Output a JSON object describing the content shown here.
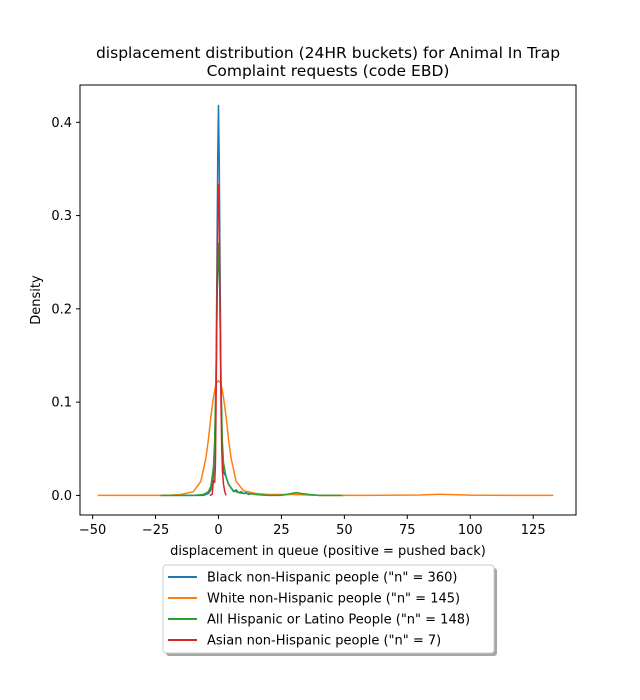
{
  "chart_data": {
    "type": "line",
    "title_line1": "displacement distribution (24HR buckets) for Animal In Trap",
    "title_line2": "Complaint requests (code EBD)",
    "xlabel": "displacement in queue (positive = pushed back)",
    "ylabel": "Density",
    "xlim": [
      -55,
      142
    ],
    "ylim": [
      -0.021,
      0.44
    ],
    "xticks": [
      -50,
      -25,
      0,
      25,
      50,
      75,
      100,
      125
    ],
    "yticks": [
      0.0,
      0.1,
      0.2,
      0.3,
      0.4
    ],
    "xtick_labels": [
      "−50",
      "−25",
      "0",
      "25",
      "50",
      "75",
      "100",
      "125"
    ],
    "ytick_labels": [
      "0.0",
      "0.1",
      "0.2",
      "0.3",
      "0.4"
    ],
    "legend_position": "below-center",
    "series": [
      {
        "name": "Black non-Hispanic people (\"n\" = 360)",
        "color": "#1f77b4",
        "x": [
          -23,
          -10,
          -6,
          -4,
          -3,
          -2,
          -1.5,
          -1,
          -0.6,
          -0.3,
          0,
          0.3,
          0.6,
          1,
          1.5,
          2,
          3,
          4,
          5,
          6,
          7,
          8,
          9,
          10,
          11,
          12,
          13,
          15,
          20,
          28,
          31,
          34,
          40,
          50
        ],
        "y": [
          0,
          0,
          0,
          0.002,
          0.006,
          0.02,
          0.05,
          0.12,
          0.25,
          0.36,
          0.418,
          0.36,
          0.25,
          0.12,
          0.05,
          0.025,
          0.02,
          0.012,
          0.008,
          0.004,
          0.006,
          0.003,
          0.004,
          0.002,
          0.003,
          0.001,
          0.002,
          0.001,
          0,
          0.001,
          0.003,
          0.001,
          0,
          0
        ]
      },
      {
        "name": "White non-Hispanic people (\"n\" = 145)",
        "color": "#ff7f0e",
        "x": [
          -48,
          -30,
          -20,
          -15,
          -10,
          -7,
          -5,
          -4,
          -3,
          -2,
          -1,
          0,
          1,
          2,
          3,
          4,
          5,
          7,
          10,
          15,
          20,
          30,
          40,
          60,
          80,
          85,
          88,
          91,
          100,
          120,
          133
        ],
        "y": [
          0,
          0,
          0,
          0.001,
          0.004,
          0.015,
          0.04,
          0.06,
          0.085,
          0.105,
          0.12,
          0.123,
          0.12,
          0.105,
          0.085,
          0.06,
          0.04,
          0.015,
          0.005,
          0.002,
          0.001,
          0.001,
          0,
          0,
          0.0005,
          0.001,
          0.0012,
          0.001,
          0.0003,
          0,
          0
        ]
      },
      {
        "name": "All Hispanic or Latino People (\"n\" = 148)",
        "color": "#2ca02c",
        "x": [
          -23,
          -10,
          -6,
          -4,
          -3,
          -2,
          -1.5,
          -1,
          -0.5,
          0,
          0.5,
          1,
          1.5,
          2,
          3,
          4,
          5,
          6,
          8,
          10,
          12,
          15,
          20,
          25,
          29,
          31,
          33,
          36,
          40,
          49
        ],
        "y": [
          0,
          0,
          0.001,
          0.004,
          0.01,
          0.03,
          0.06,
          0.12,
          0.22,
          0.27,
          0.22,
          0.12,
          0.06,
          0.035,
          0.02,
          0.012,
          0.008,
          0.005,
          0.003,
          0.002,
          0.002,
          0.001,
          0,
          0,
          0.002,
          0.003,
          0.002,
          0.001,
          0,
          0
        ]
      },
      {
        "name": "Asian non-Hispanic people (\"n\" = 7)",
        "color": "#d62728",
        "x": [
          -3.5,
          -2.5,
          -2,
          -1.5,
          -1.2,
          -1,
          -0.6,
          -0.3,
          0,
          0.3,
          0.6,
          1,
          1.3,
          1.6,
          2,
          2.5,
          3
        ],
        "y": [
          0,
          0.001,
          0.016,
          0.014,
          0.035,
          0.09,
          0.2,
          0.3,
          0.333,
          0.3,
          0.2,
          0.1,
          0.05,
          0.025,
          0.012,
          0.004,
          0
        ]
      }
    ]
  }
}
